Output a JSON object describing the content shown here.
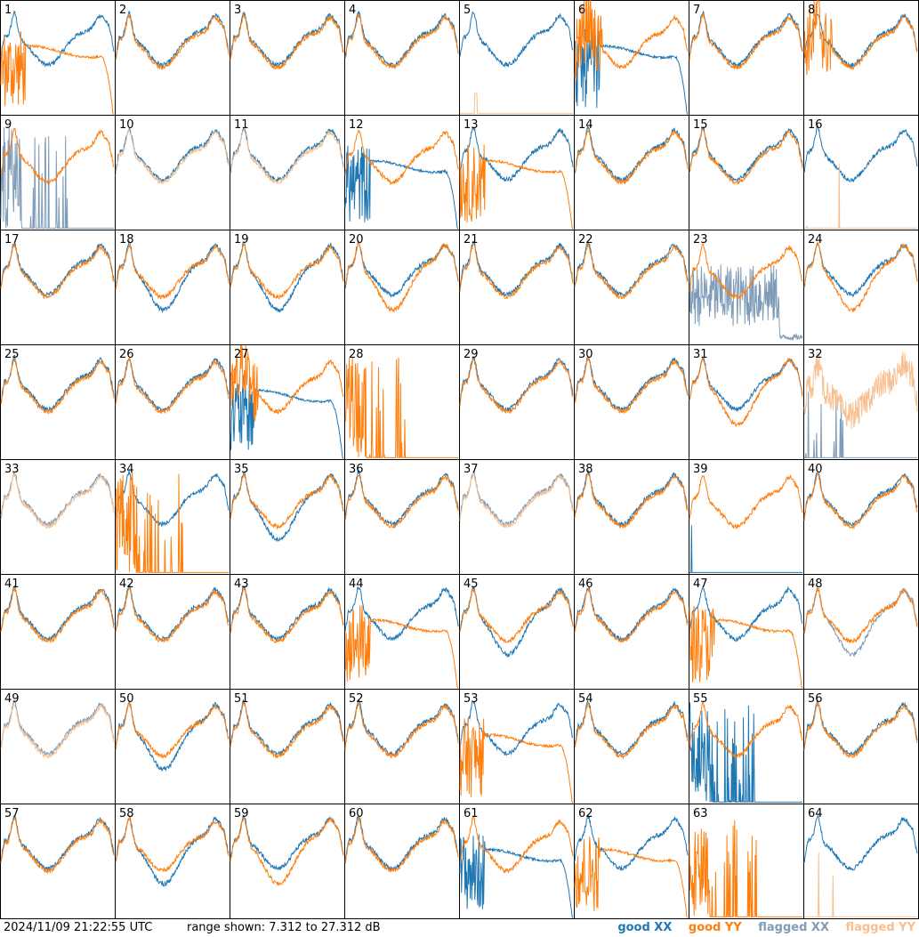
{
  "footer": {
    "timestamp": "2024/11/09 21:22:55 UTC",
    "range_text": "range shown: 7.312 to 27.312 dB"
  },
  "legend": {
    "good_xx": "good XX",
    "good_yy": "good YY",
    "flagged_xx": "flagged XX",
    "flagged_yy": "flagged YY"
  },
  "colors": {
    "good_xx": "#1f77b4",
    "good_yy": "#ff7f0e",
    "flagged_xx": "#7f9cb8",
    "flagged_yy": "#f8c090"
  },
  "chart_data": {
    "type": "line",
    "layout": "8x8 small multiples",
    "ylim": [
      7.312,
      27.312
    ],
    "yunit": "dB",
    "panels": [
      {
        "label": "1",
        "xx": "normal",
        "yy": "dropout"
      },
      {
        "label": "2",
        "xx": "normal",
        "yy": "normal"
      },
      {
        "label": "3",
        "xx": "normal",
        "yy": "normal"
      },
      {
        "label": "4",
        "xx": "normal",
        "yy": "normal"
      },
      {
        "label": "5",
        "xx": "normal",
        "yy": "flat_flagged"
      },
      {
        "label": "6",
        "xx": "dropout",
        "yy": "noisy_normal"
      },
      {
        "label": "7",
        "xx": "normal",
        "yy": "normal"
      },
      {
        "label": "8",
        "xx": "normal",
        "yy": "noisy_normal"
      },
      {
        "label": "9",
        "xx": "spiky_flagged",
        "yy": "normal"
      },
      {
        "label": "10",
        "xx": "normal",
        "yy": "normal_flagged"
      },
      {
        "label": "11",
        "xx": "normal",
        "yy": "normal_flagged"
      },
      {
        "label": "12",
        "xx": "dropout",
        "yy": "normal"
      },
      {
        "label": "13",
        "xx": "normal",
        "yy": "dropout"
      },
      {
        "label": "14",
        "xx": "normal",
        "yy": "normal"
      },
      {
        "label": "15",
        "xx": "normal",
        "yy": "normal"
      },
      {
        "label": "16",
        "xx": "normal",
        "yy": "spiky_flagged_small"
      },
      {
        "label": "17",
        "xx": "normal",
        "yy": "normal"
      },
      {
        "label": "18",
        "xx": "low",
        "yy": "normal"
      },
      {
        "label": "19",
        "xx": "low",
        "yy": "normal"
      },
      {
        "label": "20",
        "xx": "normal",
        "yy": "low"
      },
      {
        "label": "21",
        "xx": "normal",
        "yy": "normal"
      },
      {
        "label": "22",
        "xx": "normal",
        "yy": "normal"
      },
      {
        "label": "23",
        "xx": "noise_flagged",
        "yy": "normal"
      },
      {
        "label": "24",
        "xx": "normal",
        "yy": "low"
      },
      {
        "label": "25",
        "xx": "normal",
        "yy": "normal"
      },
      {
        "label": "26",
        "xx": "normal",
        "yy": "normal"
      },
      {
        "label": "27",
        "xx": "dropout",
        "yy": "noisy_normal"
      },
      {
        "label": "28",
        "xx": "none",
        "yy": "spiky"
      },
      {
        "label": "29",
        "xx": "normal",
        "yy": "normal"
      },
      {
        "label": "30",
        "xx": "normal",
        "yy": "normal"
      },
      {
        "label": "31",
        "xx": "normal",
        "yy": "low"
      },
      {
        "label": "32",
        "xx": "spiky_flagged_small",
        "yy": "noise_flagged_high"
      },
      {
        "label": "33",
        "xx": "normal_flagged",
        "yy": "normal_flagged"
      },
      {
        "label": "34",
        "xx": "normal",
        "yy": "spiky"
      },
      {
        "label": "35",
        "xx": "low",
        "yy": "normal"
      },
      {
        "label": "36",
        "xx": "normal",
        "yy": "normal"
      },
      {
        "label": "37",
        "xx": "normal_flagged",
        "yy": "normal_flagged"
      },
      {
        "label": "38",
        "xx": "normal",
        "yy": "normal"
      },
      {
        "label": "39",
        "xx": "spiky_small",
        "yy": "normal"
      },
      {
        "label": "40",
        "xx": "normal",
        "yy": "normal"
      },
      {
        "label": "41",
        "xx": "normal",
        "yy": "normal"
      },
      {
        "label": "42",
        "xx": "normal",
        "yy": "normal"
      },
      {
        "label": "43",
        "xx": "normal",
        "yy": "normal"
      },
      {
        "label": "44",
        "xx": "normal",
        "yy": "dropout"
      },
      {
        "label": "45",
        "xx": "low",
        "yy": "normal"
      },
      {
        "label": "46",
        "xx": "normal",
        "yy": "normal"
      },
      {
        "label": "47",
        "xx": "normal",
        "yy": "dropout"
      },
      {
        "label": "48",
        "xx": "low_flagged",
        "yy": "normal"
      },
      {
        "label": "49",
        "xx": "normal_flagged",
        "yy": "normal_flagged"
      },
      {
        "label": "50",
        "xx": "low",
        "yy": "normal"
      },
      {
        "label": "51",
        "xx": "normal",
        "yy": "normal"
      },
      {
        "label": "52",
        "xx": "normal",
        "yy": "normal"
      },
      {
        "label": "53",
        "xx": "normal",
        "yy": "dropout"
      },
      {
        "label": "54",
        "xx": "normal",
        "yy": "normal"
      },
      {
        "label": "55",
        "xx": "spiky",
        "yy": "normal"
      },
      {
        "label": "56",
        "xx": "normal",
        "yy": "normal"
      },
      {
        "label": "57",
        "xx": "normal",
        "yy": "normal"
      },
      {
        "label": "58",
        "xx": "low",
        "yy": "normal"
      },
      {
        "label": "59",
        "xx": "normal",
        "yy": "low"
      },
      {
        "label": "60",
        "xx": "normal",
        "yy": "normal"
      },
      {
        "label": "61",
        "xx": "dropout",
        "yy": "normal"
      },
      {
        "label": "62",
        "xx": "normal",
        "yy": "dropout"
      },
      {
        "label": "63",
        "xx": "none",
        "yy": "spiky"
      },
      {
        "label": "64",
        "xx": "normal",
        "yy": "spiky_flagged_small"
      }
    ]
  }
}
